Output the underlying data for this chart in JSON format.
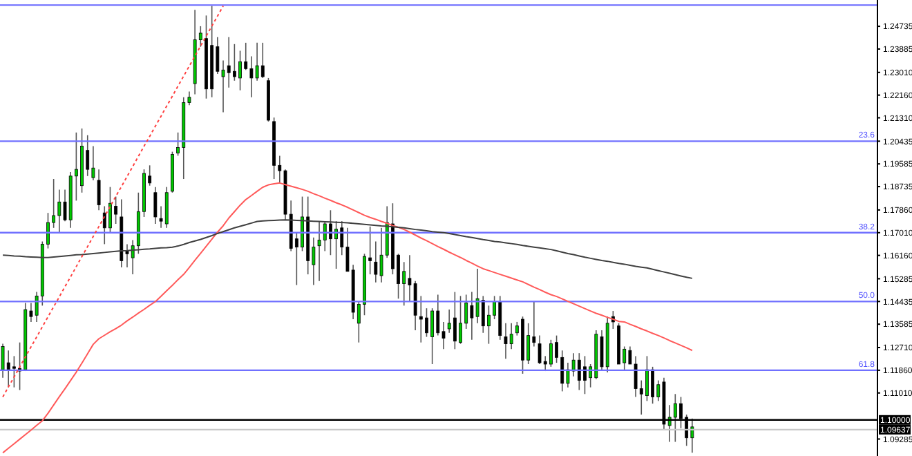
{
  "chart_data": {
    "type": "candlestick",
    "tick_labels": "y",
    "categories": [
      null,
      null,
      null,
      null,
      null,
      null,
      null,
      null,
      null,
      null,
      null,
      null,
      null,
      null,
      null,
      null,
      null,
      null,
      null,
      null,
      null,
      null,
      null,
      null,
      null,
      null,
      null,
      null,
      null,
      null,
      null,
      null,
      null,
      null,
      null,
      null,
      null,
      null,
      null,
      null,
      null,
      null,
      null,
      null,
      null,
      null,
      null,
      null,
      null,
      null,
      null,
      null,
      null,
      null,
      null,
      null,
      null,
      null,
      null,
      null,
      null,
      null,
      null,
      null,
      null,
      null,
      null,
      null,
      null,
      null,
      null,
      null,
      null,
      null,
      null,
      null,
      null,
      null,
      null,
      null,
      null,
      null,
      null,
      null,
      null,
      null,
      null,
      null,
      null,
      null,
      null,
      null,
      null,
      null,
      null,
      null,
      null,
      null,
      null,
      null,
      null,
      null,
      null,
      null,
      null,
      null,
      null,
      null,
      null,
      null,
      null,
      null,
      null,
      null,
      null,
      null,
      null,
      null,
      null,
      null,
      null,
      null,
      null
    ],
    "ohlc": [
      [
        1.1188,
        1.1285,
        1.1158,
        1.1275
      ],
      [
        1.1214,
        1.126,
        1.1122,
        1.1188
      ],
      [
        1.1199,
        1.1239,
        1.1122,
        1.1193
      ],
      [
        1.1193,
        1.129,
        1.1112,
        1.1183
      ],
      [
        1.1188,
        1.1438,
        1.1183,
        1.1413
      ],
      [
        1.1408,
        1.1438,
        1.1367,
        1.1387
      ],
      [
        1.1392,
        1.1479,
        1.1367,
        1.1464
      ],
      [
        1.1464,
        1.1668,
        1.1428,
        1.1658
      ],
      [
        1.1658,
        1.1775,
        1.1642,
        1.1739
      ],
      [
        1.1739,
        1.1902,
        1.1719,
        1.1765
      ],
      [
        1.1765,
        1.1862,
        1.1698,
        1.1816
      ],
      [
        1.1816,
        1.1862,
        1.1744,
        1.1749
      ],
      [
        1.1749,
        1.1928,
        1.1719,
        1.1913
      ],
      [
        1.1913,
        1.2076,
        1.1821,
        1.1938
      ],
      [
        1.1877,
        1.2091,
        1.1851,
        1.2025
      ],
      [
        1.2009,
        1.2066,
        1.1913,
        1.1938
      ],
      [
        1.1907,
        1.2025,
        1.1897,
        1.1943
      ],
      [
        1.1897,
        1.1938,
        1.1785,
        1.1805
      ],
      [
        1.1775,
        1.18,
        1.1658,
        1.1719
      ],
      [
        1.1719,
        1.1872,
        1.1698,
        1.1811
      ],
      [
        1.18,
        1.1836,
        1.1734,
        1.177
      ],
      [
        1.176,
        1.1826,
        1.1571,
        1.1596
      ],
      [
        1.1632,
        1.1658,
        1.1571,
        1.1622
      ],
      [
        1.1607,
        1.1673,
        1.1545,
        1.1652
      ],
      [
        1.1652,
        1.1851,
        1.1622,
        1.178
      ],
      [
        1.178,
        1.1938,
        1.176,
        1.1923
      ],
      [
        1.1913,
        1.1953,
        1.1877,
        1.1887
      ],
      [
        1.1851,
        1.1872,
        1.1734,
        1.176
      ],
      [
        1.1754,
        1.18,
        1.1719,
        1.1744
      ],
      [
        1.1734,
        1.1872,
        1.1719,
        1.1851
      ],
      [
        1.1856,
        1.2004,
        1.1851,
        1.1994
      ],
      [
        1.1999,
        1.2076,
        1.1989,
        1.202
      ],
      [
        1.202,
        1.2208,
        1.1902,
        1.2188
      ],
      [
        1.2188,
        1.2229,
        1.2178,
        1.2208
      ],
      [
        1.2259,
        1.2535,
        1.2219,
        1.2423
      ],
      [
        1.2423,
        1.2474,
        1.2397,
        1.2448
      ],
      [
        1.2428,
        1.2514,
        1.2203,
        1.2239
      ],
      [
        1.2402,
        1.255,
        1.2208,
        1.2239
      ],
      [
        1.2397,
        1.2433,
        1.2295,
        1.2305
      ],
      [
        1.2285,
        1.2346,
        1.2152,
        1.231
      ],
      [
        1.2326,
        1.2433,
        1.2244,
        1.23
      ],
      [
        1.2305,
        1.2407,
        1.227,
        1.2285
      ],
      [
        1.228,
        1.2382,
        1.2234,
        1.2341
      ],
      [
        1.2341,
        1.2412,
        1.231,
        1.2315
      ],
      [
        1.2315,
        1.2361,
        1.2208,
        1.228
      ],
      [
        1.228,
        1.2412,
        1.227,
        1.2326
      ],
      [
        1.2326,
        1.2412,
        1.228,
        1.2285
      ],
      [
        1.227,
        1.228,
        1.2117,
        1.2122
      ],
      [
        1.2117,
        1.2132,
        1.1902,
        1.1953
      ],
      [
        1.1953,
        1.1989,
        1.1887,
        1.1933
      ],
      [
        1.1933,
        1.1938,
        1.1749,
        1.177
      ],
      [
        1.177,
        1.1821,
        1.1632,
        1.1642
      ],
      [
        1.1678,
        1.1698,
        1.1505,
        1.1647
      ],
      [
        1.1647,
        1.1836,
        1.1632,
        1.176
      ],
      [
        1.176,
        1.1836,
        1.1545,
        1.1596
      ],
      [
        1.1581,
        1.1683,
        1.1505,
        1.1647
      ],
      [
        1.1652,
        1.1744,
        1.152,
        1.1673
      ],
      [
        1.1673,
        1.1744,
        1.1632,
        1.1734
      ],
      [
        1.1734,
        1.1785,
        1.1617,
        1.1678
      ],
      [
        1.1678,
        1.1744,
        1.1566,
        1.1714
      ],
      [
        1.1719,
        1.1744,
        1.1617,
        1.1647
      ],
      [
        1.1647,
        1.1719,
        1.1556,
        1.1556
      ],
      [
        1.1561,
        1.1581,
        1.1377,
        1.1403
      ],
      [
        1.1362,
        1.1443,
        1.129,
        1.1433
      ],
      [
        1.1433,
        1.1622,
        1.1392,
        1.1612
      ],
      [
        1.1607,
        1.1724,
        1.1545,
        1.1596
      ],
      [
        1.1591,
        1.1668,
        1.1515,
        1.1545
      ],
      [
        1.154,
        1.1719,
        1.1515,
        1.1617
      ],
      [
        1.1617,
        1.18,
        1.1607,
        1.1739
      ],
      [
        1.1734,
        1.1811,
        1.1545,
        1.1566
      ],
      [
        1.1617,
        1.1622,
        1.1454,
        1.151
      ],
      [
        1.151,
        1.1591,
        1.1428,
        1.1556
      ],
      [
        1.153,
        1.1617,
        1.1443,
        1.1505
      ],
      [
        1.151,
        1.152,
        1.1336,
        1.1392
      ],
      [
        1.1387,
        1.1464,
        1.129,
        1.1377
      ],
      [
        1.1382,
        1.1418,
        1.1311,
        1.1326
      ],
      [
        1.1311,
        1.1418,
        1.1209,
        1.1408
      ],
      [
        1.1408,
        1.1469,
        1.1316,
        1.1326
      ],
      [
        1.1331,
        1.1367,
        1.1265,
        1.1306
      ],
      [
        1.1341,
        1.1413,
        1.1326,
        1.1362
      ],
      [
        1.1382,
        1.1479,
        1.1265,
        1.1295
      ],
      [
        1.129,
        1.1464,
        1.1285,
        1.1362
      ],
      [
        1.1362,
        1.1469,
        1.1341,
        1.1438
      ],
      [
        1.1428,
        1.1479,
        1.13,
        1.1382
      ],
      [
        1.1387,
        1.1566,
        1.1362,
        1.1454
      ],
      [
        1.1448,
        1.1464,
        1.1326,
        1.1352
      ],
      [
        1.1352,
        1.1428,
        1.1285,
        1.1392
      ],
      [
        1.1392,
        1.1464,
        1.1377,
        1.1443
      ],
      [
        1.1443,
        1.1464,
        1.13,
        1.1316
      ],
      [
        1.1311,
        1.1362,
        1.1229,
        1.1285
      ],
      [
        1.1285,
        1.1362,
        1.1265,
        1.1321
      ],
      [
        1.1326,
        1.1367,
        1.1316,
        1.1352
      ],
      [
        1.1377,
        1.1387,
        1.1173,
        1.1224
      ],
      [
        1.1224,
        1.1362,
        1.1209,
        1.1316
      ],
      [
        1.1311,
        1.1443,
        1.1275,
        1.129
      ],
      [
        1.1285,
        1.1316,
        1.1209,
        1.1214
      ],
      [
        1.1219,
        1.1239,
        1.1183,
        1.1209
      ],
      [
        1.1209,
        1.13,
        1.1199,
        1.1285
      ],
      [
        1.129,
        1.1316,
        1.1214,
        1.1234
      ],
      [
        1.1234,
        1.126,
        1.1107,
        1.1137
      ],
      [
        1.1137,
        1.1214,
        1.1122,
        1.1188
      ],
      [
        1.1183,
        1.125,
        1.1163,
        1.1224
      ],
      [
        1.1224,
        1.125,
        1.1112,
        1.1148
      ],
      [
        1.1199,
        1.1239,
        1.1097,
        1.1148
      ],
      [
        1.1158,
        1.1209,
        1.1122,
        1.1199
      ],
      [
        1.1158,
        1.1336,
        1.1153,
        1.1321
      ],
      [
        1.1311,
        1.1336,
        1.1188,
        1.1199
      ],
      [
        1.1199,
        1.1387,
        1.1178,
        1.1362
      ],
      [
        1.1387,
        1.1408,
        1.1341,
        1.1367
      ],
      [
        1.1352,
        1.1362,
        1.1209,
        1.1209
      ],
      [
        1.1214,
        1.1275,
        1.1188,
        1.1265
      ],
      [
        1.126,
        1.1275,
        1.1209,
        1.1209
      ],
      [
        1.1209,
        1.1239,
        1.1086,
        1.1117
      ],
      [
        1.1117,
        1.1148,
        1.102,
        1.1097
      ],
      [
        1.1091,
        1.1239,
        1.1071,
        1.1188
      ],
      [
        1.1188,
        1.1199,
        1.1061,
        1.1086
      ],
      [
        1.1086,
        1.1148,
        1.1071,
        1.1132
      ],
      [
        1.1142,
        1.1158,
        1.0964,
        1.0984
      ],
      [
        1.0979,
        1.1056,
        1.0918,
        1.101
      ],
      [
        1.101,
        1.1097,
        1.0918,
        1.1061
      ],
      [
        1.1061,
        1.1086,
        1.0969,
        1.1005
      ],
      [
        1.101,
        1.102,
        1.0903,
        1.0933
      ],
      [
        1.0933,
        1.1005,
        1.0877,
        1.0974
      ]
    ],
    "series": [
      {
        "type": "line",
        "color": "#ff5a5a",
        "values": [
          1.0877,
          1.0894,
          1.0911,
          1.0928,
          1.0945,
          1.0962,
          1.098,
          1.0997,
          1.1025,
          1.1056,
          1.1087,
          1.1117,
          1.1148,
          1.1179,
          1.1213,
          1.1248,
          1.1283,
          1.1304,
          1.1317,
          1.133,
          1.1342,
          1.1355,
          1.1371,
          1.1385,
          1.14,
          1.1414,
          1.1429,
          1.1443,
          1.1463,
          1.1484,
          1.1504,
          1.1525,
          1.1545,
          1.1571,
          1.1598,
          1.1624,
          1.165,
          1.1677,
          1.1703,
          1.1727,
          1.1756,
          1.178,
          1.1804,
          1.1825,
          1.184,
          1.1856,
          1.1871,
          1.188,
          1.1884,
          1.1887,
          1.1881,
          1.1875,
          1.1869,
          1.1863,
          1.1856,
          1.1847,
          1.1839,
          1.183,
          1.1822,
          1.1813,
          1.1805,
          1.1796,
          1.1786,
          1.1776,
          1.1766,
          1.1758,
          1.1751,
          1.1743,
          1.1736,
          1.1728,
          1.1721,
          1.1713,
          1.1703,
          1.1692,
          1.1681,
          1.1671,
          1.166,
          1.1649,
          1.1639,
          1.1628,
          1.1618,
          1.1608,
          1.1597,
          1.1587,
          1.1576,
          1.1566,
          1.1559,
          1.1552,
          1.1545,
          1.1538,
          1.1531,
          1.1524,
          1.1517,
          1.1507,
          1.1497,
          1.1488,
          1.1478,
          1.1469,
          1.1462,
          1.1453,
          1.1444,
          1.1435,
          1.1426,
          1.1417,
          1.1408,
          1.1399,
          1.1392,
          1.1384,
          1.1377,
          1.1369,
          1.1367,
          1.1358,
          1.135,
          1.1341,
          1.1333,
          1.1324,
          1.1316,
          1.1307,
          1.1297,
          1.1288,
          1.1279,
          1.127,
          1.126
        ]
      },
      {
        "type": "line",
        "color": "#404040",
        "values": [
          1.1617,
          1.1616,
          1.1614,
          1.1613,
          1.1611,
          1.161,
          1.1609,
          1.1608,
          1.1608,
          1.161,
          1.1612,
          1.1614,
          1.1616,
          1.1618,
          1.1619,
          1.1621,
          1.1623,
          1.1625,
          1.1627,
          1.1629,
          1.1631,
          1.1633,
          1.1634,
          1.1636,
          1.1637,
          1.1639,
          1.164,
          1.1642,
          1.1644,
          1.1645,
          1.1647,
          1.1651,
          1.1657,
          1.1664,
          1.167,
          1.1676,
          1.1683,
          1.169,
          1.1698,
          1.1705,
          1.1712,
          1.1719,
          1.1725,
          1.1731,
          1.1737,
          1.1743,
          1.1745,
          1.1746,
          1.1747,
          1.1748,
          1.1749,
          1.1748,
          1.1747,
          1.1746,
          1.1745,
          1.1744,
          1.1743,
          1.1742,
          1.1741,
          1.174,
          1.1739,
          1.1738,
          1.1736,
          1.1734,
          1.1732,
          1.173,
          1.1728,
          1.1726,
          1.1725,
          1.1723,
          1.1721,
          1.1719,
          1.1716,
          1.1713,
          1.1711,
          1.1708,
          1.1705,
          1.1703,
          1.1701,
          1.1698,
          1.1694,
          1.169,
          1.1686,
          1.1683,
          1.1679,
          1.1675,
          1.1672,
          1.1668,
          1.1666,
          1.1663,
          1.166,
          1.1657,
          1.1653,
          1.165,
          1.1647,
          1.1644,
          1.1641,
          1.1638,
          1.1633,
          1.1628,
          1.1623,
          1.1619,
          1.1614,
          1.1609,
          1.1605,
          1.1601,
          1.1597,
          1.1594,
          1.159,
          1.1586,
          1.1583,
          1.1579,
          1.1575,
          1.1572,
          1.1569,
          1.1564,
          1.1559,
          1.1554,
          1.1549,
          1.1544,
          1.1539,
          1.1534,
          1.153
        ]
      },
      {
        "type": "line",
        "color": "#ff4040",
        "line_style": "dotted",
        "values": [
          1.1086,
          1.1124,
          1.1161,
          1.1199,
          1.1236,
          1.1274,
          1.1311,
          1.1349,
          1.1386,
          1.1424,
          1.1461,
          1.1499,
          1.1536,
          1.1574,
          1.1612,
          1.1649,
          1.1687,
          1.1724,
          1.1762,
          1.1799,
          1.1837,
          1.1874,
          1.1912,
          1.1949,
          1.1987,
          1.2025,
          1.2062,
          1.21,
          1.2137,
          1.2175,
          1.2212,
          1.225,
          1.2287,
          1.2325,
          1.2362,
          1.24,
          1.2437,
          1.2475,
          1.2512,
          1.255,
          null,
          null,
          null,
          null,
          null,
          null,
          null,
          null,
          null,
          null,
          null,
          null,
          null,
          null,
          null,
          null,
          null,
          null,
          null,
          null,
          null,
          null,
          null,
          null,
          null,
          null,
          null,
          null,
          null,
          null,
          null,
          null,
          null,
          null,
          null,
          null,
          null,
          null,
          null,
          null,
          null,
          null,
          null,
          null,
          null,
          null,
          null,
          null,
          null,
          null,
          null,
          null,
          null,
          null,
          null,
          null,
          null,
          null,
          null,
          null,
          null,
          null,
          null,
          null,
          null,
          null,
          null,
          null,
          null,
          null,
          null,
          null,
          null,
          null,
          null,
          null,
          null,
          null,
          null,
          null,
          null,
          null,
          null
        ]
      }
    ],
    "ylim": [
      1.0865,
      1.2572
    ],
    "yticks": [
      {
        "value": 1.24735,
        "label": "1.24735"
      },
      {
        "value": 1.23885,
        "label": "1.23885"
      },
      {
        "value": 1.2301,
        "label": "1.23010"
      },
      {
        "value": 1.2216,
        "label": "1.22160"
      },
      {
        "value": 1.2131,
        "label": "1.21310"
      },
      {
        "value": 1.20435,
        "label": "1.20435"
      },
      {
        "value": 1.19585,
        "label": "1.19585"
      },
      {
        "value": 1.18735,
        "label": "1.18735"
      },
      {
        "value": 1.1786,
        "label": "1.17860"
      },
      {
        "value": 1.1701,
        "label": "1.17010"
      },
      {
        "value": 1.1616,
        "label": "1.16160"
      },
      {
        "value": 1.15285,
        "label": "1.15285"
      },
      {
        "value": 1.14435,
        "label": "1.14435"
      },
      {
        "value": 1.13585,
        "label": "1.13585"
      },
      {
        "value": 1.1271,
        "label": "1.12710"
      },
      {
        "value": 1.1186,
        "label": "1.11860"
      },
      {
        "value": 1.1101,
        "label": "1.11010"
      },
      {
        "value": 1.09285,
        "label": "1.09285"
      }
    ],
    "ref_lines": [
      {
        "axis": "y",
        "value": 1.2553,
        "label": null,
        "color": "#7070ff"
      },
      {
        "axis": "y",
        "value": 1.20435,
        "label": null,
        "color": "#7070ff"
      },
      {
        "axis": "y",
        "value": 1.1701,
        "label": null,
        "color": "#7070ff"
      },
      {
        "axis": "y",
        "value": 1.14435,
        "label": null,
        "color": "#7070ff"
      },
      {
        "axis": "y",
        "value": 1.1186,
        "label": null,
        "color": "#7070ff"
      },
      {
        "axis": "y",
        "value": 1.1,
        "label": "1.10000",
        "color": "#000000"
      },
      {
        "axis": "y",
        "value": 1.09637,
        "label": "1.09637",
        "color": "#c8c8c8"
      }
    ],
    "annotations": [
      {
        "text": "23.6",
        "y": 1.20435
      },
      {
        "text": "38.2",
        "y": 1.1701
      },
      {
        "text": "50.0",
        "y": 1.14435
      },
      {
        "text": "61.8",
        "y": 1.1186
      }
    ]
  }
}
